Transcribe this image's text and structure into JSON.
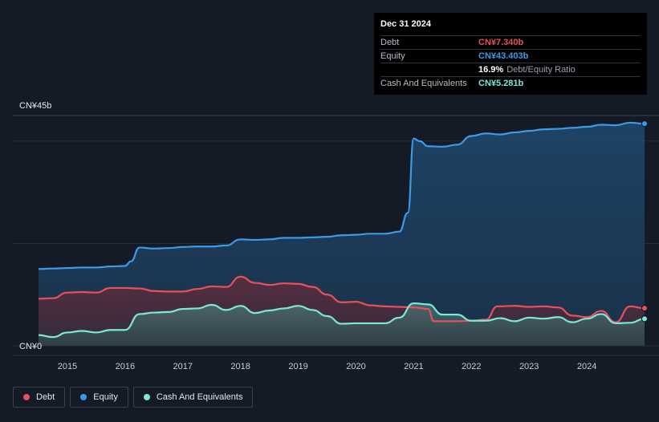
{
  "tooltip": {
    "date": "Dec 31 2024",
    "rows": [
      {
        "label": "Debt",
        "value": "CN¥7.340b",
        "color": "#e8505b"
      },
      {
        "label": "Equity",
        "value": "CN¥43.403b",
        "color": "#3b9be8"
      },
      {
        "label": "",
        "value": "16.9%",
        "extra": "Debt/Equity Ratio",
        "color": "#ffffff"
      },
      {
        "label": "Cash And Equivalents",
        "value": "CN¥5.281b",
        "color": "#7de8d4"
      }
    ]
  },
  "legend": [
    {
      "label": "Debt",
      "color": "#e8505b"
    },
    {
      "label": "Equity",
      "color": "#3b9be8"
    },
    {
      "label": "Cash And Equivalents",
      "color": "#7de8d4"
    }
  ],
  "chart_data": {
    "type": "area",
    "y_unit": "CN¥ billions",
    "ylim": [
      0,
      45
    ],
    "xlim": [
      2014.5,
      2025.0
    ],
    "y_tick_labels": [
      {
        "value": 45,
        "label": "CN¥45b"
      },
      {
        "value": 0,
        "label": "CN¥0"
      }
    ],
    "x_ticks": [
      2015,
      2016,
      2017,
      2018,
      2019,
      2020,
      2021,
      2022,
      2023,
      2024
    ],
    "x_tick_labels": [
      "2015",
      "2016",
      "2017",
      "2018",
      "2019",
      "2020",
      "2021",
      "2022",
      "2023",
      "2024"
    ],
    "series": [
      {
        "name": "Equity",
        "color": "#3b9be8",
        "points": [
          [
            2014.5,
            15.0
          ],
          [
            2014.75,
            15.1
          ],
          [
            2015.0,
            15.2
          ],
          [
            2015.25,
            15.3
          ],
          [
            2015.5,
            15.3
          ],
          [
            2015.75,
            15.5
          ],
          [
            2016.0,
            15.6
          ],
          [
            2016.1,
            16.5
          ],
          [
            2016.25,
            19.2
          ],
          [
            2016.5,
            19.0
          ],
          [
            2016.75,
            19.1
          ],
          [
            2017.0,
            19.3
          ],
          [
            2017.25,
            19.4
          ],
          [
            2017.5,
            19.4
          ],
          [
            2017.75,
            19.6
          ],
          [
            2018.0,
            20.8
          ],
          [
            2018.25,
            20.7
          ],
          [
            2018.5,
            20.8
          ],
          [
            2018.75,
            21.1
          ],
          [
            2019.0,
            21.1
          ],
          [
            2019.25,
            21.2
          ],
          [
            2019.5,
            21.3
          ],
          [
            2019.75,
            21.6
          ],
          [
            2020.0,
            21.7
          ],
          [
            2020.25,
            21.9
          ],
          [
            2020.5,
            21.9
          ],
          [
            2020.75,
            22.3
          ],
          [
            2020.9,
            26.0
          ],
          [
            2021.0,
            40.5
          ],
          [
            2021.1,
            40.0
          ],
          [
            2021.25,
            39.0
          ],
          [
            2021.5,
            38.9
          ],
          [
            2021.75,
            39.3
          ],
          [
            2022.0,
            41.0
          ],
          [
            2022.25,
            41.5
          ],
          [
            2022.5,
            41.3
          ],
          [
            2022.75,
            41.7
          ],
          [
            2023.0,
            42.0
          ],
          [
            2023.25,
            42.3
          ],
          [
            2023.5,
            42.4
          ],
          [
            2023.75,
            42.6
          ],
          [
            2024.0,
            42.8
          ],
          [
            2024.25,
            43.2
          ],
          [
            2024.5,
            43.1
          ],
          [
            2024.75,
            43.6
          ],
          [
            2025.0,
            43.403
          ]
        ]
      },
      {
        "name": "Debt",
        "color": "#e8505b",
        "points": [
          [
            2014.5,
            9.2
          ],
          [
            2014.75,
            9.3
          ],
          [
            2015.0,
            10.4
          ],
          [
            2015.25,
            10.5
          ],
          [
            2015.5,
            10.4
          ],
          [
            2015.75,
            11.3
          ],
          [
            2016.0,
            11.3
          ],
          [
            2016.25,
            11.2
          ],
          [
            2016.5,
            10.7
          ],
          [
            2016.75,
            10.6
          ],
          [
            2017.0,
            10.6
          ],
          [
            2017.25,
            11.1
          ],
          [
            2017.5,
            11.6
          ],
          [
            2017.75,
            11.5
          ],
          [
            2018.0,
            13.5
          ],
          [
            2018.25,
            12.3
          ],
          [
            2018.5,
            11.9
          ],
          [
            2018.75,
            12.2
          ],
          [
            2019.0,
            12.1
          ],
          [
            2019.25,
            11.5
          ],
          [
            2019.5,
            10.0
          ],
          [
            2019.75,
            8.5
          ],
          [
            2020.0,
            8.6
          ],
          [
            2020.25,
            7.9
          ],
          [
            2020.5,
            7.7
          ],
          [
            2020.75,
            7.6
          ],
          [
            2021.0,
            7.5
          ],
          [
            2021.25,
            7.2
          ],
          [
            2021.35,
            4.8
          ],
          [
            2021.5,
            4.8
          ],
          [
            2021.75,
            4.8
          ],
          [
            2022.0,
            4.9
          ],
          [
            2022.25,
            5.1
          ],
          [
            2022.45,
            7.7
          ],
          [
            2022.75,
            7.8
          ],
          [
            2023.0,
            7.6
          ],
          [
            2023.25,
            7.7
          ],
          [
            2023.5,
            7.5
          ],
          [
            2023.75,
            5.9
          ],
          [
            2024.0,
            5.6
          ],
          [
            2024.25,
            6.8
          ],
          [
            2024.5,
            4.6
          ],
          [
            2024.75,
            7.7
          ],
          [
            2025.0,
            7.34
          ]
        ]
      },
      {
        "name": "Cash And Equivalents",
        "color": "#7de8d4",
        "points": [
          [
            2014.5,
            2.1
          ],
          [
            2014.75,
            1.7
          ],
          [
            2015.0,
            2.6
          ],
          [
            2015.25,
            2.9
          ],
          [
            2015.5,
            2.6
          ],
          [
            2015.75,
            3.1
          ],
          [
            2016.0,
            3.1
          ],
          [
            2016.25,
            6.2
          ],
          [
            2016.5,
            6.5
          ],
          [
            2016.75,
            6.6
          ],
          [
            2017.0,
            7.2
          ],
          [
            2017.25,
            7.3
          ],
          [
            2017.5,
            8.0
          ],
          [
            2017.75,
            7.0
          ],
          [
            2018.0,
            7.8
          ],
          [
            2018.25,
            6.4
          ],
          [
            2018.5,
            6.9
          ],
          [
            2018.75,
            7.3
          ],
          [
            2019.0,
            7.8
          ],
          [
            2019.25,
            7.0
          ],
          [
            2019.5,
            5.8
          ],
          [
            2019.75,
            4.3
          ],
          [
            2020.0,
            4.4
          ],
          [
            2020.25,
            4.4
          ],
          [
            2020.5,
            4.4
          ],
          [
            2020.75,
            5.5
          ],
          [
            2021.0,
            8.3
          ],
          [
            2021.25,
            8.1
          ],
          [
            2021.5,
            6.1
          ],
          [
            2021.75,
            6.1
          ],
          [
            2022.0,
            4.9
          ],
          [
            2022.25,
            4.9
          ],
          [
            2022.5,
            5.4
          ],
          [
            2022.75,
            4.8
          ],
          [
            2023.0,
            5.5
          ],
          [
            2023.25,
            5.3
          ],
          [
            2023.5,
            5.6
          ],
          [
            2023.75,
            4.6
          ],
          [
            2024.0,
            5.3
          ],
          [
            2024.25,
            6.2
          ],
          [
            2024.5,
            4.4
          ],
          [
            2024.75,
            4.5
          ],
          [
            2025.0,
            5.281
          ]
        ]
      }
    ]
  }
}
